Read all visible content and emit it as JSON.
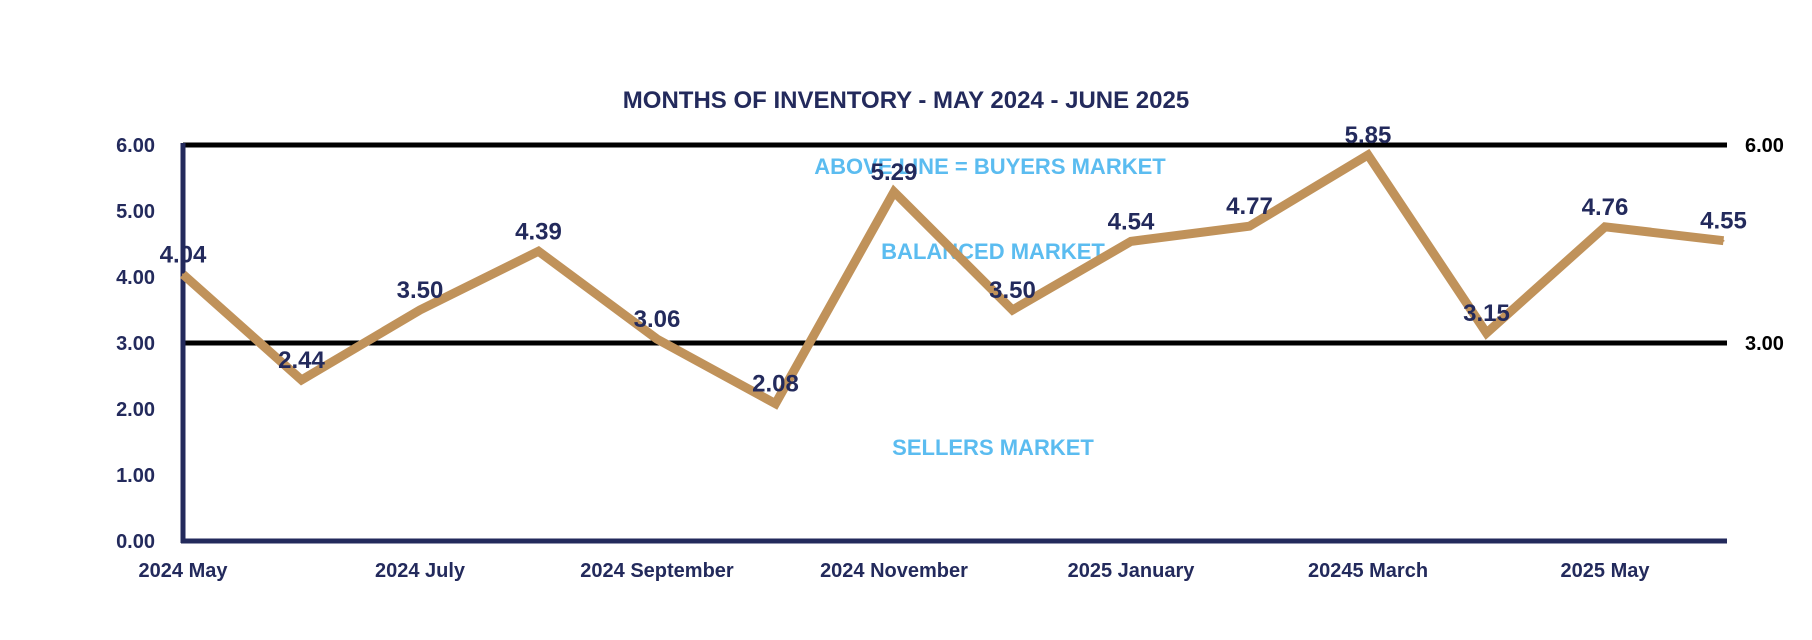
{
  "chart_data": {
    "type": "line",
    "title": "MONTHS OF INVENTORY - MAY 2024 - JUNE 2025",
    "categories": [
      "2024 May",
      "",
      "2024 July",
      "",
      "2024 September",
      "",
      "2024 November",
      "",
      "2025 January",
      "",
      "20245 March",
      "",
      "2025 May",
      ""
    ],
    "values": [
      4.04,
      2.44,
      3.5,
      4.39,
      3.06,
      2.08,
      5.29,
      3.5,
      4.54,
      4.77,
      5.85,
      3.15,
      4.76,
      4.55
    ],
    "data_labels": [
      "4.04",
      "2.44",
      "3.50",
      "4.39",
      "3.06",
      "2.08",
      "5.29",
      "3.50",
      "4.54",
      "4.77",
      "5.85",
      "3.15",
      "4.76",
      "4.55"
    ],
    "x_tick_labels": [
      "2024 May",
      "2024 July",
      "2024 September",
      "2024 November",
      "2025 January",
      "20245 March",
      "2025 May"
    ],
    "y_tick_labels": [
      "0.00",
      "1.00",
      "2.00",
      "3.00",
      "4.00",
      "5.00",
      "6.00"
    ],
    "ylim": [
      0,
      6
    ],
    "grid": false,
    "reference_lines": [
      {
        "value": 3,
        "label": "3.00"
      },
      {
        "value": 6,
        "label": "6.00"
      }
    ],
    "annotations": {
      "buyers": "ABOVE LINE = BUYERS MARKET",
      "balanced": "BALANCED MARKET",
      "sellers": "SELLERS MARKET"
    },
    "colors": {
      "line": "#c0925a",
      "axis": "#232a5c",
      "text": "#232a5c",
      "reference": "#000000",
      "annotation": "#5bbcf0"
    }
  }
}
